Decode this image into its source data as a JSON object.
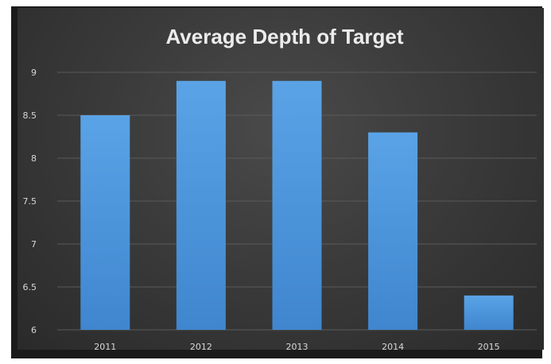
{
  "chart_data": {
    "type": "bar",
    "title": "Average Depth of Target",
    "xlabel": "",
    "ylabel": "",
    "categories": [
      "2011",
      "2012",
      "2013",
      "2014",
      "2015"
    ],
    "values": [
      8.5,
      8.9,
      8.9,
      8.3,
      6.4
    ],
    "ylim": [
      6,
      9
    ],
    "yticks": [
      "6",
      "6.5",
      "7",
      "7.5",
      "8",
      "8.5",
      "9"
    ],
    "grid": true,
    "legend": "none",
    "colors": {
      "bar_top": "#5aa3e6",
      "bar_bottom": "#3f86cf",
      "background": "#3b3b3b"
    }
  }
}
